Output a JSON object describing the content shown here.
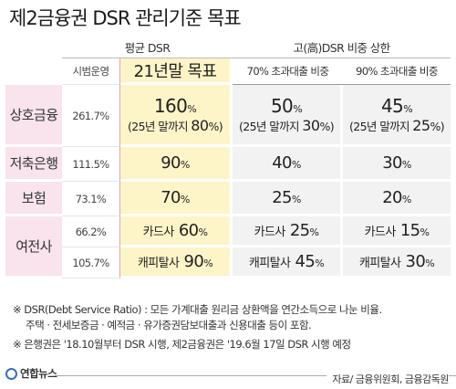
{
  "title": "제2금융권 DSR 관리기준 목표",
  "headers": {
    "avg_group": "평균 DSR",
    "high_group": "고(高)DSR 비중 상한",
    "pilot": "시범운영",
    "target": "21년말 목표",
    "over70": "70% 초과대출 비중",
    "over90": "90% 초과대출 비중"
  },
  "rows": {
    "mutual": {
      "label": "상호금융",
      "pilot": "261.7%",
      "target_value": "160",
      "target_unit": "%",
      "target_note_pre": "(25년 말까지 ",
      "target_note_value": "80",
      "target_note_unit": "%)",
      "over70_value": "50",
      "over70_unit": "%",
      "over70_note_pre": "(25년 말까지 ",
      "over70_note_value": "30",
      "over70_note_unit": "%)",
      "over90_value": "45",
      "over90_unit": "%",
      "over90_note_pre": "(25년 말까지 ",
      "over90_note_value": "25",
      "over90_note_unit": "%)"
    },
    "savings": {
      "label": "저축은행",
      "pilot": "111.5%",
      "target_value": "90",
      "target_unit": "%",
      "over70_value": "40",
      "over70_unit": "%",
      "over90_value": "30",
      "over90_unit": "%"
    },
    "insurance": {
      "label": "보험",
      "pilot": "73.1%",
      "target_value": "70",
      "target_unit": "%",
      "over70_value": "25",
      "over70_unit": "%",
      "over90_value": "20",
      "over90_unit": "%"
    },
    "credit": {
      "label": "여전사",
      "card": {
        "pilot": "66.2%",
        "name": "카드사",
        "target_value": "60",
        "target_unit": "%",
        "over70_value": "25",
        "over70_unit": "%",
        "over90_value": "15",
        "over90_unit": "%"
      },
      "capital": {
        "pilot": "105.7%",
        "name": "캐피탈사",
        "target_value": "90",
        "target_unit": "%",
        "over70_value": "45",
        "over70_unit": "%",
        "over90_value": "30",
        "over90_unit": "%"
      }
    }
  },
  "notes": {
    "line1": "※ DSR(Debt Service Ratio) : 모든 가계대출 원리금 상환액을 연간소득으로 나눈 비율.",
    "line2": "주택 · 전세보증금 · 예적금 · 유가증권담보대출과 신용대출 등이 포함.",
    "line3": "※ 은행권은 '18.10월부터 DSR 시행, 제2금융권은 '19.6월 17일 DSR 시행 예정"
  },
  "footer": {
    "logo": "연합뉴스",
    "source": "자료/ 금융위원회, 금융감독원"
  },
  "colors": {
    "category_bg": "#f9e3ec",
    "target_bg": "#fdf4c8",
    "high_bg": "#f2f2f2",
    "pilot_divider": "#e4a3b8"
  }
}
